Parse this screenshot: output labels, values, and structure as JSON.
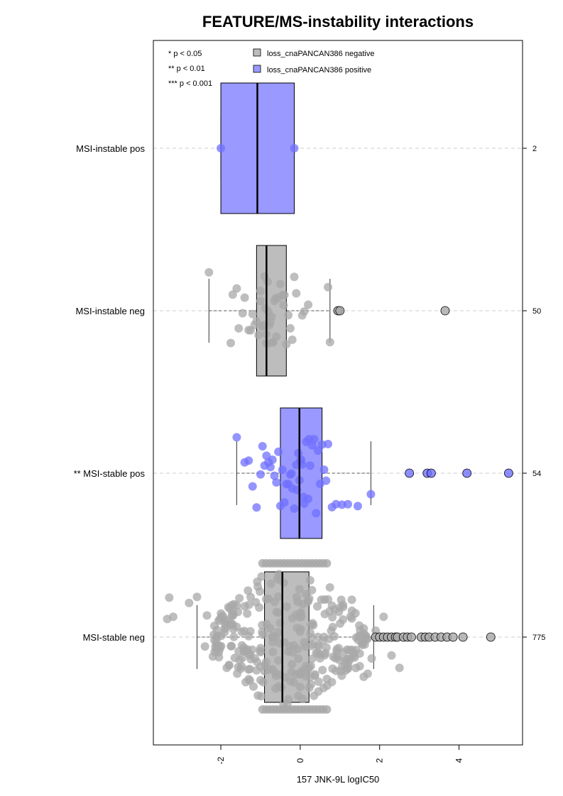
{
  "chart_data": {
    "type": "boxplot-beeswarm",
    "title": "FEATURE/MS-instability interactions",
    "xlabel": "157 JNK-9L logIC50",
    "ylabel": "",
    "xlim": [
      -3.7,
      5.6
    ],
    "xticks": [
      -2,
      0,
      2,
      4
    ],
    "xtick_labels": [
      "-2",
      "0",
      "2",
      "4"
    ],
    "grid": "horizontal dashed lines at each group",
    "significance_legend": [
      "* p < 0.05",
      "** p < 0.01",
      "*** p < 0.001"
    ],
    "legend": [
      {
        "label": "loss_cnaPANCAN386 negative",
        "color": "#bdbdbd"
      },
      {
        "label": "loss_cnaPANCAN386 positive",
        "color": "#9999ff"
      }
    ],
    "legend_position": "top",
    "colors": {
      "negative_box": "#bdbdbd",
      "positive_box": "#9999ff",
      "negative_point": "#a8a8a8",
      "positive_point": "#7070ff",
      "grid": "#cccccc"
    },
    "groups": [
      {
        "label": "MSI-instable pos",
        "count": "2",
        "status": "positive",
        "box": {
          "whisker_low": -2.0,
          "q1": -2.0,
          "median": -1.08,
          "q3": -0.15,
          "whisker_high": -0.15
        },
        "box_half_height": 92,
        "outliers": [],
        "points": [
          -2.0,
          -0.15
        ]
      },
      {
        "label": "MSI-instable neg",
        "count": "50",
        "status": "negative",
        "box": {
          "whisker_low": -2.3,
          "q1": -1.1,
          "median": -0.85,
          "q3": -0.35,
          "whisker_high": 0.75
        },
        "box_half_height": 92,
        "outliers": [
          0.95,
          1.0,
          3.65
        ],
        "points": [
          -2.3,
          -1.75,
          -1.7,
          -1.6,
          -1.55,
          -1.45,
          -1.4,
          -1.3,
          -1.25,
          -1.2,
          -1.15,
          -1.1,
          -1.05,
          -1.0,
          -1.0,
          -0.95,
          -0.95,
          -0.9,
          -0.9,
          -0.88,
          -0.85,
          -0.85,
          -0.82,
          -0.8,
          -0.8,
          -0.78,
          -0.75,
          -0.72,
          -0.7,
          -0.68,
          -0.65,
          -0.62,
          -0.6,
          -0.55,
          -0.5,
          -0.45,
          -0.42,
          -0.4,
          -0.35,
          -0.3,
          -0.25,
          -0.2,
          -0.15,
          -0.1,
          0.05,
          0.1,
          0.2,
          0.7,
          0.75
        ]
      },
      {
        "label": "** MSI-stable pos",
        "count": "54",
        "status": "positive",
        "box": {
          "whisker_low": -1.6,
          "q1": -0.5,
          "median": -0.02,
          "q3": 0.55,
          "whisker_high": 1.78
        },
        "box_half_height": 92,
        "outliers": [
          2.75,
          3.2,
          3.3,
          4.2,
          5.25
        ],
        "points": [
          -1.6,
          -1.4,
          -1.3,
          -1.2,
          -1.1,
          -1.0,
          -0.95,
          -0.9,
          -0.85,
          -0.8,
          -0.75,
          -0.7,
          -0.65,
          -0.6,
          -0.55,
          -0.5,
          -0.45,
          -0.4,
          -0.35,
          -0.3,
          -0.25,
          -0.22,
          -0.2,
          -0.15,
          -0.1,
          -0.08,
          -0.05,
          -0.02,
          0.0,
          0.02,
          0.05,
          0.08,
          0.1,
          0.15,
          0.2,
          0.22,
          0.25,
          0.3,
          0.35,
          0.4,
          0.45,
          0.5,
          0.55,
          0.6,
          0.65,
          0.7,
          0.8,
          0.9,
          1.05,
          1.2,
          1.45,
          1.78
        ]
      },
      {
        "label": "MSI-stable neg",
        "count": "775",
        "status": "negative",
        "box": {
          "whisker_low": -2.6,
          "q1": -0.9,
          "median": -0.45,
          "q3": 0.22,
          "whisker_high": 1.85
        },
        "box_half_height": 92,
        "outliers": [
          1.9,
          2.0,
          2.1,
          2.2,
          2.3,
          2.4,
          2.45,
          2.6,
          2.7,
          2.8,
          3.05,
          3.15,
          3.25,
          3.4,
          3.55,
          3.7,
          3.85,
          4.1,
          4.8
        ],
        "points": [
          -3.35,
          -3.3,
          -3.2,
          -2.8,
          -2.6,
          -2.4,
          -2.35,
          -2.2,
          -2.1,
          -2.05,
          -1.95,
          -1.85,
          -1.7,
          -1.6,
          -1.5,
          -1.4,
          -1.3,
          -1.25,
          -1.1,
          -1.0,
          -0.9,
          -0.8,
          -0.7,
          -0.6,
          -0.5,
          -0.4,
          -0.3,
          -0.2,
          -0.1,
          0.0,
          0.1,
          0.2,
          0.3,
          0.4,
          0.5,
          0.6,
          0.7,
          0.8,
          0.9,
          1.0,
          1.1,
          1.2,
          1.3,
          1.4,
          1.5,
          1.6,
          1.7,
          1.8,
          1.9,
          2.1,
          2.3,
          2.5
        ]
      }
    ]
  }
}
